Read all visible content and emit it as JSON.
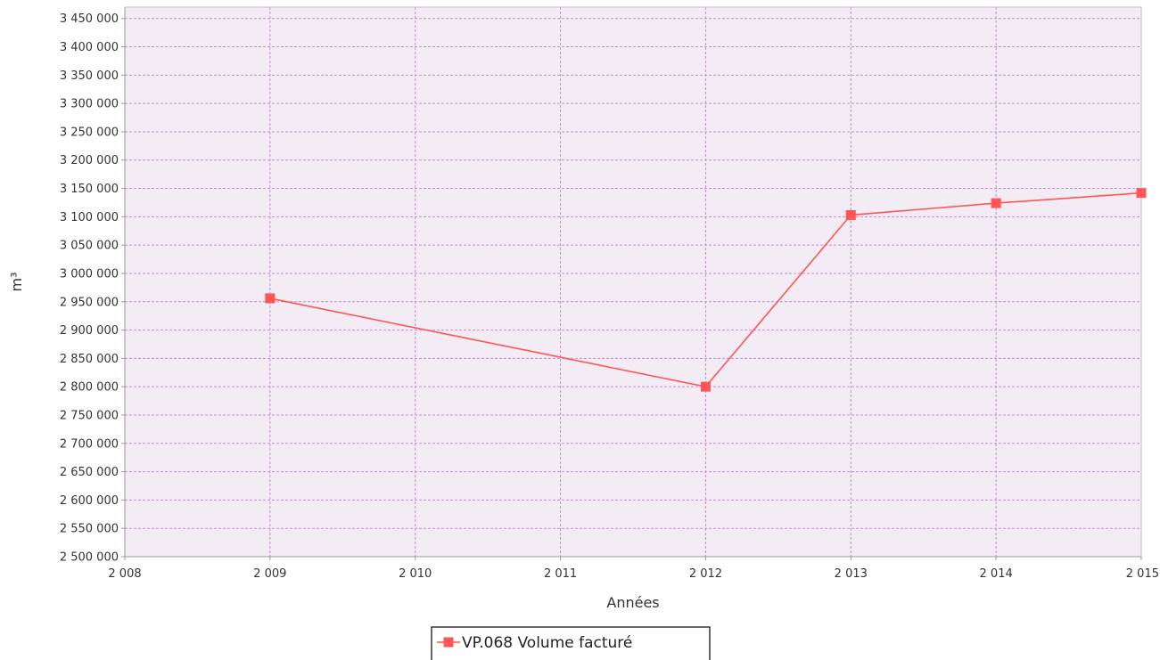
{
  "chart_data": {
    "type": "line",
    "title": "",
    "xlabel": "Années",
    "ylabel": "m³",
    "xlim": [
      2008,
      2015
    ],
    "ylim": [
      2500000,
      3450000
    ],
    "x_ticks": [
      2008,
      2009,
      2010,
      2011,
      2012,
      2013,
      2014,
      2015
    ],
    "x_tick_labels": [
      "2 008",
      "2 009",
      "2 010",
      "2 011",
      "2 012",
      "2 013",
      "2 014",
      "2 015"
    ],
    "y_ticks": [
      2500000,
      2550000,
      2600000,
      2650000,
      2700000,
      2750000,
      2800000,
      2850000,
      2900000,
      2950000,
      3000000,
      3050000,
      3100000,
      3150000,
      3200000,
      3250000,
      3300000,
      3350000,
      3400000,
      3450000
    ],
    "y_tick_labels": [
      "2 500 000",
      "2 550 000",
      "2 600 000",
      "2 650 000",
      "2 700 000",
      "2 750 000",
      "2 800 000",
      "2 850 000",
      "2 900 000",
      "2 950 000",
      "3 000 000",
      "3 050 000",
      "3 100 000",
      "3 150 000",
      "3 200 000",
      "3 250 000",
      "3 300 000",
      "3 350 000",
      "3 400 000",
      "3 450 000"
    ],
    "grid": true,
    "legend_position": "bottom",
    "series": [
      {
        "name": "VP.068 Volume facturé",
        "color": "#ff5555",
        "marker": "square",
        "points": [
          {
            "x": 2009,
            "y": 2956000
          },
          {
            "x": 2012,
            "y": 2800000
          },
          {
            "x": 2013,
            "y": 3103000
          },
          {
            "x": 2014,
            "y": 3124000
          },
          {
            "x": 2015,
            "y": 3142000
          }
        ]
      }
    ],
    "colors": {
      "plot_background": "#f3ecf4",
      "grid": "#c58fd0",
      "axis": "#999999"
    }
  }
}
